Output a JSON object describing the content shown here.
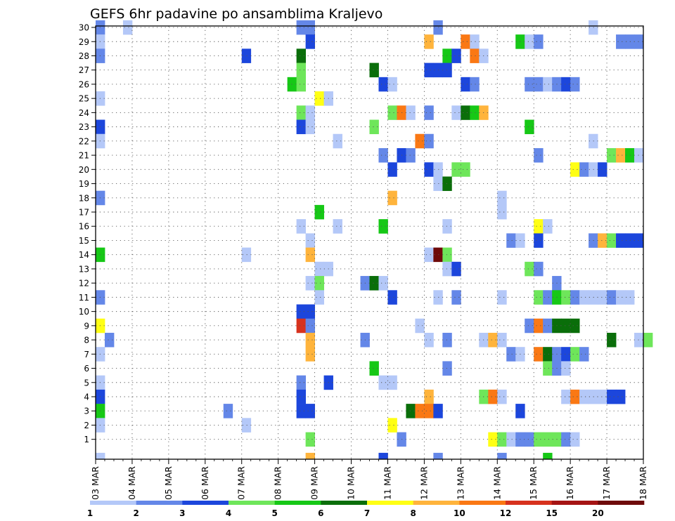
{
  "chart_data": {
    "type": "heatmap",
    "title": "GEFS 6hr padavine po ansamblima Kraljevo",
    "xlabel": "",
    "ylabel": "",
    "x_tick_labels": [
      "03 MAR",
      "04 MAR",
      "05 MAR",
      "06 MAR",
      "07 MAR",
      "08 MAR",
      "09 MAR",
      "10 MAR",
      "11 MAR",
      "12 MAR",
      "13 MAR",
      "14 MAR",
      "15 MAR",
      "16 MAR",
      "17 MAR",
      "18 MAR"
    ],
    "xlim": [
      0,
      15
    ],
    "x_unit": "days since 03 MAR (6-hourly steps)",
    "y_tick_labels": [
      "1",
      "2",
      "3",
      "4",
      "5",
      "6",
      "7",
      "8",
      "9",
      "10",
      "11",
      "12",
      "13",
      "14",
      "15",
      "16",
      "17",
      "18",
      "19",
      "20",
      "21",
      "22",
      "23",
      "24",
      "25",
      "26",
      "27",
      "28",
      "29",
      "30"
    ],
    "ylim": [
      0,
      30
    ],
    "grid": true,
    "colorbar": {
      "placement": "bottom",
      "boundaries": [
        "1",
        "2",
        "3",
        "4",
        "5",
        "6",
        "7",
        "8",
        "10",
        "12",
        "15",
        "20"
      ],
      "colors": [
        "#b4c8f8",
        "#6487e8",
        "#1c46dc",
        "#6ee65a",
        "#16c816",
        "#0a6e0a",
        "#ffff14",
        "#ffb43c",
        "#fa7814",
        "#d7321e",
        "#a51414",
        "#6e0a0a"
      ]
    },
    "cells": [
      {
        "day": 0.0,
        "member": 30,
        "bin": 1
      },
      {
        "day": 0.75,
        "member": 30,
        "bin": 0
      },
      {
        "day": 5.5,
        "member": 30,
        "bin": 1
      },
      {
        "day": 5.75,
        "member": 30,
        "bin": 1
      },
      {
        "day": 9.25,
        "member": 30,
        "bin": 1
      },
      {
        "day": 13.5,
        "member": 30,
        "bin": 0
      },
      {
        "day": 0.0,
        "member": 29,
        "bin": 0
      },
      {
        "day": 5.75,
        "member": 29,
        "bin": 2
      },
      {
        "day": 9.0,
        "member": 29,
        "bin": 7
      },
      {
        "day": 10.0,
        "member": 29,
        "bin": 8
      },
      {
        "day": 10.25,
        "member": 29,
        "bin": 0
      },
      {
        "day": 11.5,
        "member": 29,
        "bin": 4
      },
      {
        "day": 11.75,
        "member": 29,
        "bin": 0
      },
      {
        "day": 12.0,
        "member": 29,
        "bin": 1
      },
      {
        "day": 14.25,
        "member": 29,
        "bin": 1
      },
      {
        "day": 14.5,
        "member": 29,
        "bin": 1
      },
      {
        "day": 14.75,
        "member": 29,
        "bin": 1
      },
      {
        "day": 0.0,
        "member": 28,
        "bin": 1
      },
      {
        "day": 4.0,
        "member": 28,
        "bin": 2
      },
      {
        "day": 5.5,
        "member": 28,
        "bin": 5
      },
      {
        "day": 9.5,
        "member": 28,
        "bin": 4
      },
      {
        "day": 9.75,
        "member": 28,
        "bin": 2
      },
      {
        "day": 10.25,
        "member": 28,
        "bin": 8
      },
      {
        "day": 10.5,
        "member": 28,
        "bin": 0
      },
      {
        "day": 5.5,
        "member": 27,
        "bin": 3
      },
      {
        "day": 7.5,
        "member": 27,
        "bin": 5
      },
      {
        "day": 9.0,
        "member": 27,
        "bin": 2
      },
      {
        "day": 9.25,
        "member": 27,
        "bin": 2
      },
      {
        "day": 9.5,
        "member": 27,
        "bin": 2
      },
      {
        "day": 5.25,
        "member": 26,
        "bin": 4
      },
      {
        "day": 5.5,
        "member": 26,
        "bin": 3
      },
      {
        "day": 7.75,
        "member": 26,
        "bin": 2
      },
      {
        "day": 8.0,
        "member": 26,
        "bin": 0
      },
      {
        "day": 10.0,
        "member": 26,
        "bin": 2
      },
      {
        "day": 10.25,
        "member": 26,
        "bin": 1
      },
      {
        "day": 11.75,
        "member": 26,
        "bin": 1
      },
      {
        "day": 12.0,
        "member": 26,
        "bin": 1
      },
      {
        "day": 12.25,
        "member": 26,
        "bin": 0
      },
      {
        "day": 12.5,
        "member": 26,
        "bin": 1
      },
      {
        "day": 12.75,
        "member": 26,
        "bin": 2
      },
      {
        "day": 13.0,
        "member": 26,
        "bin": 1
      },
      {
        "day": 0.0,
        "member": 25,
        "bin": 0
      },
      {
        "day": 6.0,
        "member": 25,
        "bin": 6
      },
      {
        "day": 6.25,
        "member": 25,
        "bin": 0
      },
      {
        "day": 5.5,
        "member": 24,
        "bin": 3
      },
      {
        "day": 5.75,
        "member": 24,
        "bin": 0
      },
      {
        "day": 8.0,
        "member": 24,
        "bin": 3
      },
      {
        "day": 8.25,
        "member": 24,
        "bin": 8
      },
      {
        "day": 8.5,
        "member": 24,
        "bin": 0
      },
      {
        "day": 9.0,
        "member": 24,
        "bin": 1
      },
      {
        "day": 9.75,
        "member": 24,
        "bin": 0
      },
      {
        "day": 10.0,
        "member": 24,
        "bin": 5
      },
      {
        "day": 10.25,
        "member": 24,
        "bin": 4
      },
      {
        "day": 10.5,
        "member": 24,
        "bin": 7
      },
      {
        "day": 0.0,
        "member": 23,
        "bin": 2
      },
      {
        "day": 5.5,
        "member": 23,
        "bin": 2
      },
      {
        "day": 5.75,
        "member": 23,
        "bin": 0
      },
      {
        "day": 7.5,
        "member": 23,
        "bin": 3
      },
      {
        "day": 11.75,
        "member": 23,
        "bin": 4
      },
      {
        "day": 0.0,
        "member": 22,
        "bin": 0
      },
      {
        "day": 6.5,
        "member": 22,
        "bin": 0
      },
      {
        "day": 8.75,
        "member": 22,
        "bin": 8
      },
      {
        "day": 9.0,
        "member": 22,
        "bin": 1
      },
      {
        "day": 13.5,
        "member": 22,
        "bin": 0
      },
      {
        "day": 7.75,
        "member": 21,
        "bin": 1
      },
      {
        "day": 8.25,
        "member": 21,
        "bin": 2
      },
      {
        "day": 8.5,
        "member": 21,
        "bin": 1
      },
      {
        "day": 12.0,
        "member": 21,
        "bin": 1
      },
      {
        "day": 14.0,
        "member": 21,
        "bin": 3
      },
      {
        "day": 14.25,
        "member": 21,
        "bin": 7
      },
      {
        "day": 14.5,
        "member": 21,
        "bin": 4
      },
      {
        "day": 14.75,
        "member": 21,
        "bin": 0
      },
      {
        "day": 8.0,
        "member": 20,
        "bin": 2
      },
      {
        "day": 9.0,
        "member": 20,
        "bin": 2
      },
      {
        "day": 9.25,
        "member": 20,
        "bin": 0
      },
      {
        "day": 9.75,
        "member": 20,
        "bin": 3
      },
      {
        "day": 10.0,
        "member": 20,
        "bin": 3
      },
      {
        "day": 13.0,
        "member": 20,
        "bin": 6
      },
      {
        "day": 13.25,
        "member": 20,
        "bin": 1
      },
      {
        "day": 13.5,
        "member": 20,
        "bin": 0
      },
      {
        "day": 13.75,
        "member": 20,
        "bin": 2
      },
      {
        "day": 9.25,
        "member": 19,
        "bin": 0
      },
      {
        "day": 9.5,
        "member": 19,
        "bin": 5
      },
      {
        "day": 0.0,
        "member": 18,
        "bin": 1
      },
      {
        "day": 8.0,
        "member": 18,
        "bin": 7
      },
      {
        "day": 11.0,
        "member": 18,
        "bin": 0
      },
      {
        "day": 6.0,
        "member": 17,
        "bin": 4
      },
      {
        "day": 11.0,
        "member": 17,
        "bin": 0
      },
      {
        "day": 5.5,
        "member": 16,
        "bin": 0
      },
      {
        "day": 6.5,
        "member": 16,
        "bin": 0
      },
      {
        "day": 7.75,
        "member": 16,
        "bin": 4
      },
      {
        "day": 9.5,
        "member": 16,
        "bin": 0
      },
      {
        "day": 12.0,
        "member": 16,
        "bin": 6
      },
      {
        "day": 12.25,
        "member": 16,
        "bin": 0
      },
      {
        "day": 5.75,
        "member": 15,
        "bin": 0
      },
      {
        "day": 11.25,
        "member": 15,
        "bin": 1
      },
      {
        "day": 11.5,
        "member": 15,
        "bin": 0
      },
      {
        "day": 12.0,
        "member": 15,
        "bin": 2
      },
      {
        "day": 13.5,
        "member": 15,
        "bin": 1
      },
      {
        "day": 13.75,
        "member": 15,
        "bin": 7
      },
      {
        "day": 14.0,
        "member": 15,
        "bin": 3
      },
      {
        "day": 14.25,
        "member": 15,
        "bin": 2
      },
      {
        "day": 14.5,
        "member": 15,
        "bin": 2
      },
      {
        "day": 14.75,
        "member": 15,
        "bin": 2
      },
      {
        "day": 0.0,
        "member": 14,
        "bin": 4
      },
      {
        "day": 4.0,
        "member": 14,
        "bin": 0
      },
      {
        "day": 5.75,
        "member": 14,
        "bin": 7
      },
      {
        "day": 9.0,
        "member": 14,
        "bin": 0
      },
      {
        "day": 9.25,
        "member": 14,
        "bin": 11
      },
      {
        "day": 9.5,
        "member": 14,
        "bin": 3
      },
      {
        "day": 6.0,
        "member": 13,
        "bin": 0
      },
      {
        "day": 6.25,
        "member": 13,
        "bin": 0
      },
      {
        "day": 9.5,
        "member": 13,
        "bin": 0
      },
      {
        "day": 9.75,
        "member": 13,
        "bin": 2
      },
      {
        "day": 11.75,
        "member": 13,
        "bin": 3
      },
      {
        "day": 12.0,
        "member": 13,
        "bin": 1
      },
      {
        "day": 5.75,
        "member": 12,
        "bin": 0
      },
      {
        "day": 6.0,
        "member": 12,
        "bin": 3
      },
      {
        "day": 7.25,
        "member": 12,
        "bin": 1
      },
      {
        "day": 7.5,
        "member": 12,
        "bin": 5
      },
      {
        "day": 7.75,
        "member": 12,
        "bin": 0
      },
      {
        "day": 12.5,
        "member": 12,
        "bin": 1
      },
      {
        "day": 0.0,
        "member": 11,
        "bin": 1
      },
      {
        "day": 6.0,
        "member": 11,
        "bin": 0
      },
      {
        "day": 8.0,
        "member": 11,
        "bin": 2
      },
      {
        "day": 9.25,
        "member": 11,
        "bin": 0
      },
      {
        "day": 9.75,
        "member": 11,
        "bin": 1
      },
      {
        "day": 11.0,
        "member": 11,
        "bin": 0
      },
      {
        "day": 12.0,
        "member": 11,
        "bin": 3
      },
      {
        "day": 12.25,
        "member": 11,
        "bin": 1
      },
      {
        "day": 12.5,
        "member": 11,
        "bin": 4
      },
      {
        "day": 12.75,
        "member": 11,
        "bin": 3
      },
      {
        "day": 13.0,
        "member": 11,
        "bin": 1
      },
      {
        "day": 13.25,
        "member": 11,
        "bin": 0
      },
      {
        "day": 13.5,
        "member": 11,
        "bin": 0
      },
      {
        "day": 13.75,
        "member": 11,
        "bin": 0
      },
      {
        "day": 14.0,
        "member": 11,
        "bin": 1
      },
      {
        "day": 14.25,
        "member": 11,
        "bin": 0
      },
      {
        "day": 14.5,
        "member": 11,
        "bin": 0
      },
      {
        "day": 5.5,
        "member": 10,
        "bin": 2
      },
      {
        "day": 5.75,
        "member": 10,
        "bin": 2
      },
      {
        "day": 0.0,
        "member": 9,
        "bin": 6
      },
      {
        "day": 5.5,
        "member": 9,
        "bin": 9
      },
      {
        "day": 5.75,
        "member": 9,
        "bin": 1
      },
      {
        "day": 8.75,
        "member": 9,
        "bin": 0
      },
      {
        "day": 11.75,
        "member": 9,
        "bin": 1
      },
      {
        "day": 12.0,
        "member": 9,
        "bin": 8
      },
      {
        "day": 12.25,
        "member": 9,
        "bin": 1
      },
      {
        "day": 12.5,
        "member": 9,
        "bin": 5
      },
      {
        "day": 12.75,
        "member": 9,
        "bin": 5
      },
      {
        "day": 13.0,
        "member": 9,
        "bin": 5
      },
      {
        "day": 0.25,
        "member": 8,
        "bin": 1
      },
      {
        "day": 5.75,
        "member": 8,
        "bin": 7
      },
      {
        "day": 7.25,
        "member": 8,
        "bin": 1
      },
      {
        "day": 9.0,
        "member": 8,
        "bin": 0
      },
      {
        "day": 9.5,
        "member": 8,
        "bin": 1
      },
      {
        "day": 10.5,
        "member": 8,
        "bin": 0
      },
      {
        "day": 10.75,
        "member": 8,
        "bin": 7
      },
      {
        "day": 11.0,
        "member": 8,
        "bin": 0
      },
      {
        "day": 14.0,
        "member": 8,
        "bin": 5
      },
      {
        "day": 14.75,
        "member": 8,
        "bin": 0
      },
      {
        "day": 15.0,
        "member": 8,
        "bin": 3
      },
      {
        "day": 0.0,
        "member": 7,
        "bin": 0
      },
      {
        "day": 5.75,
        "member": 7,
        "bin": 7
      },
      {
        "day": 11.25,
        "member": 7,
        "bin": 1
      },
      {
        "day": 11.5,
        "member": 7,
        "bin": 0
      },
      {
        "day": 12.0,
        "member": 7,
        "bin": 8
      },
      {
        "day": 12.25,
        "member": 7,
        "bin": 5
      },
      {
        "day": 12.5,
        "member": 7,
        "bin": 1
      },
      {
        "day": 12.75,
        "member": 7,
        "bin": 2
      },
      {
        "day": 13.0,
        "member": 7,
        "bin": 3
      },
      {
        "day": 13.25,
        "member": 7,
        "bin": 1
      },
      {
        "day": 7.5,
        "member": 6,
        "bin": 4
      },
      {
        "day": 9.5,
        "member": 6,
        "bin": 1
      },
      {
        "day": 12.25,
        "member": 6,
        "bin": 3
      },
      {
        "day": 12.5,
        "member": 6,
        "bin": 1
      },
      {
        "day": 12.75,
        "member": 6,
        "bin": 0
      },
      {
        "day": 0.0,
        "member": 5,
        "bin": 0
      },
      {
        "day": 5.5,
        "member": 5,
        "bin": 1
      },
      {
        "day": 6.25,
        "member": 5,
        "bin": 2
      },
      {
        "day": 7.75,
        "member": 5,
        "bin": 0
      },
      {
        "day": 8.0,
        "member": 5,
        "bin": 0
      },
      {
        "day": 0.0,
        "member": 4,
        "bin": 2
      },
      {
        "day": 5.5,
        "member": 4,
        "bin": 2
      },
      {
        "day": 9.0,
        "member": 4,
        "bin": 7
      },
      {
        "day": 10.5,
        "member": 4,
        "bin": 3
      },
      {
        "day": 10.75,
        "member": 4,
        "bin": 8
      },
      {
        "day": 11.0,
        "member": 4,
        "bin": 0
      },
      {
        "day": 12.75,
        "member": 4,
        "bin": 0
      },
      {
        "day": 13.0,
        "member": 4,
        "bin": 8
      },
      {
        "day": 13.25,
        "member": 4,
        "bin": 0
      },
      {
        "day": 13.5,
        "member": 4,
        "bin": 0
      },
      {
        "day": 13.75,
        "member": 4,
        "bin": 0
      },
      {
        "day": 14.0,
        "member": 4,
        "bin": 2
      },
      {
        "day": 14.25,
        "member": 4,
        "bin": 2
      },
      {
        "day": 0.0,
        "member": 3,
        "bin": 4
      },
      {
        "day": 3.5,
        "member": 3,
        "bin": 1
      },
      {
        "day": 5.5,
        "member": 3,
        "bin": 2
      },
      {
        "day": 5.75,
        "member": 3,
        "bin": 2
      },
      {
        "day": 8.5,
        "member": 3,
        "bin": 5
      },
      {
        "day": 8.75,
        "member": 3,
        "bin": 8
      },
      {
        "day": 9.0,
        "member": 3,
        "bin": 8
      },
      {
        "day": 9.25,
        "member": 3,
        "bin": 2
      },
      {
        "day": 11.5,
        "member": 3,
        "bin": 2
      },
      {
        "day": 0.0,
        "member": 2,
        "bin": 0
      },
      {
        "day": 4.0,
        "member": 2,
        "bin": 0
      },
      {
        "day": 8.0,
        "member": 2,
        "bin": 6
      },
      {
        "day": 5.75,
        "member": 1,
        "bin": 3
      },
      {
        "day": 8.25,
        "member": 1,
        "bin": 1
      },
      {
        "day": 10.75,
        "member": 1,
        "bin": 6
      },
      {
        "day": 11.0,
        "member": 1,
        "bin": 3
      },
      {
        "day": 11.25,
        "member": 1,
        "bin": 0
      },
      {
        "day": 11.5,
        "member": 1,
        "bin": 1
      },
      {
        "day": 11.75,
        "member": 1,
        "bin": 1
      },
      {
        "day": 12.0,
        "member": 1,
        "bin": 3
      },
      {
        "day": 12.25,
        "member": 1,
        "bin": 3
      },
      {
        "day": 12.5,
        "member": 1,
        "bin": 3
      },
      {
        "day": 12.75,
        "member": 1,
        "bin": 1
      },
      {
        "day": 13.0,
        "member": 1,
        "bin": 0
      },
      {
        "day": 0.0,
        "member": 0,
        "bin": 0
      },
      {
        "day": 5.75,
        "member": 0,
        "bin": 7
      },
      {
        "day": 7.75,
        "member": 0,
        "bin": 2
      },
      {
        "day": 9.25,
        "member": 0,
        "bin": 1
      },
      {
        "day": 11.0,
        "member": 0,
        "bin": 1
      },
      {
        "day": 12.25,
        "member": 0,
        "bin": 4
      }
    ]
  }
}
